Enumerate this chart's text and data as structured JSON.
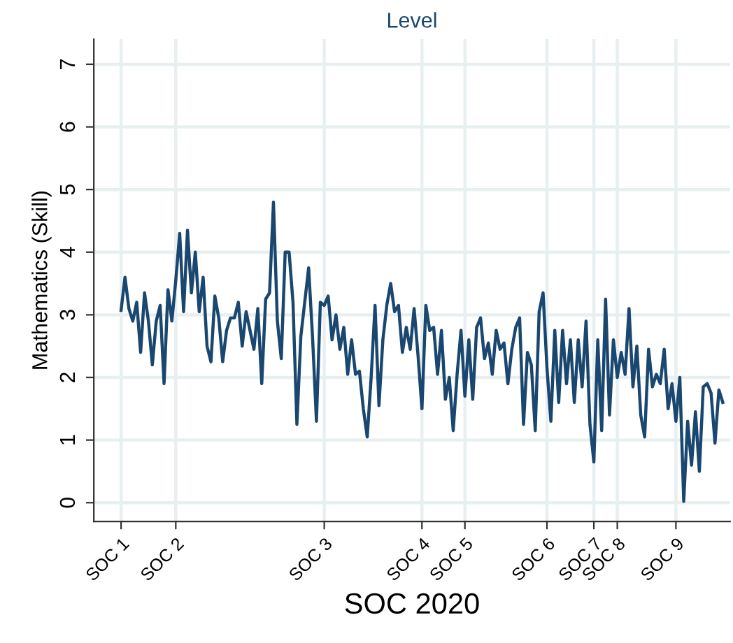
{
  "chart_data": {
    "type": "line",
    "title": "Level",
    "xlabel": "SOC 2020",
    "ylabel": "Mathematics (Skill)",
    "ylim": [
      -0.3,
      7.4
    ],
    "yticks": [
      0,
      1,
      2,
      3,
      4,
      5,
      6,
      7
    ],
    "grid": true,
    "categories": [
      "SOC 1",
      null,
      null,
      null,
      null,
      null,
      null,
      null,
      null,
      null,
      null,
      null,
      null,
      null,
      "SOC 2",
      null,
      null,
      null,
      null,
      null,
      null,
      null,
      null,
      null,
      null,
      null,
      null,
      null,
      null,
      null,
      null,
      null,
      null,
      null,
      null,
      null,
      null,
      null,
      null,
      null,
      null,
      null,
      null,
      null,
      null,
      null,
      null,
      null,
      null,
      null,
      null,
      null,
      "SOC 3",
      null,
      null,
      null,
      null,
      null,
      null,
      null,
      null,
      null,
      null,
      null,
      null,
      null,
      null,
      null,
      null,
      null,
      null,
      null,
      null,
      null,
      null,
      null,
      null,
      "SOC 4",
      null,
      null,
      null,
      null,
      null,
      null,
      null,
      null,
      null,
      null,
      "SOC 5",
      null,
      null,
      null,
      null,
      null,
      null,
      null,
      null,
      null,
      null,
      null,
      null,
      null,
      null,
      null,
      null,
      null,
      null,
      null,
      null,
      "SOC 6",
      null,
      null,
      null,
      null,
      null,
      null,
      null,
      null,
      null,
      null,
      null,
      "SOC 7",
      null,
      null,
      null,
      null,
      null,
      "SOC 8",
      null,
      null,
      null,
      null,
      null,
      null,
      null,
      null,
      null,
      null,
      null,
      null,
      null,
      null,
      "SOC 9",
      null,
      null,
      null,
      null,
      null,
      null,
      null,
      null,
      null,
      null,
      null,
      null
    ],
    "series": [
      {
        "color": "#1a476f",
        "values": [
          3.07,
          3.6,
          3.1,
          2.9,
          3.2,
          2.4,
          3.35,
          2.9,
          2.2,
          2.9,
          3.15,
          1.9,
          3.4,
          2.9,
          3.55,
          4.3,
          3.05,
          4.35,
          3.35,
          4.0,
          3.05,
          3.6,
          2.5,
          2.25,
          3.3,
          2.95,
          2.25,
          2.75,
          2.95,
          2.95,
          3.2,
          2.5,
          3.05,
          2.75,
          2.45,
          3.1,
          1.9,
          3.25,
          3.35,
          4.8,
          2.9,
          2.3,
          4.0,
          4.0,
          3.2,
          1.25,
          2.65,
          3.2,
          3.75,
          2.65,
          1.3,
          3.2,
          3.15,
          3.3,
          2.6,
          3.0,
          2.45,
          2.8,
          2.05,
          2.6,
          2.05,
          2.1,
          1.5,
          1.05,
          2.0,
          3.15,
          1.55,
          2.6,
          3.15,
          3.5,
          3.05,
          3.15,
          2.4,
          2.8,
          2.45,
          3.1,
          2.35,
          1.5,
          3.15,
          2.75,
          2.8,
          2.05,
          2.75,
          1.65,
          2.0,
          1.15,
          2.05,
          2.75,
          1.7,
          2.6,
          1.65,
          2.8,
          2.95,
          2.3,
          2.55,
          2.05,
          2.75,
          2.45,
          2.55,
          1.9,
          2.45,
          2.8,
          2.95,
          1.25,
          2.4,
          2.2,
          1.15,
          3.05,
          3.35,
          2.15,
          1.3,
          2.75,
          1.6,
          2.75,
          1.9,
          2.6,
          1.6,
          2.6,
          1.85,
          2.9,
          1.25,
          0.65,
          2.6,
          1.15,
          3.25,
          1.4,
          2.6,
          2.0,
          2.4,
          2.05,
          3.1,
          1.85,
          2.5,
          1.4,
          1.05,
          2.45,
          1.85,
          2.05,
          1.9,
          2.45,
          1.5,
          1.9,
          1.3,
          2.0,
          0.02,
          1.3,
          0.6,
          1.45,
          0.5,
          1.85,
          1.9,
          1.75,
          0.95,
          1.8,
          1.6
        ]
      }
    ]
  }
}
